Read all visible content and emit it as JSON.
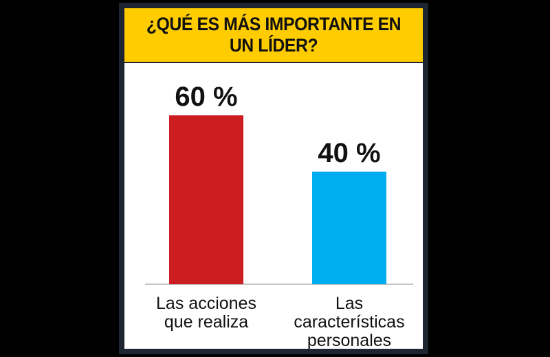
{
  "chart_data": {
    "type": "bar",
    "title": "¿QUÉ ES MÁS IMPORTANTE EN UN LÍDER?",
    "categories": [
      [
        "Las acciones",
        "que realiza"
      ],
      [
        "Las",
        "características",
        "personales"
      ]
    ],
    "values": [
      60,
      40
    ],
    "value_labels": [
      "60 %",
      "40 %"
    ],
    "ylim": [
      0,
      65
    ],
    "grid": false,
    "legend": "none",
    "colors": {
      "bars": [
        "#cc1d22",
        "#00aeef"
      ],
      "title_background": "#ffcc00",
      "frame": "#1c2530"
    }
  }
}
